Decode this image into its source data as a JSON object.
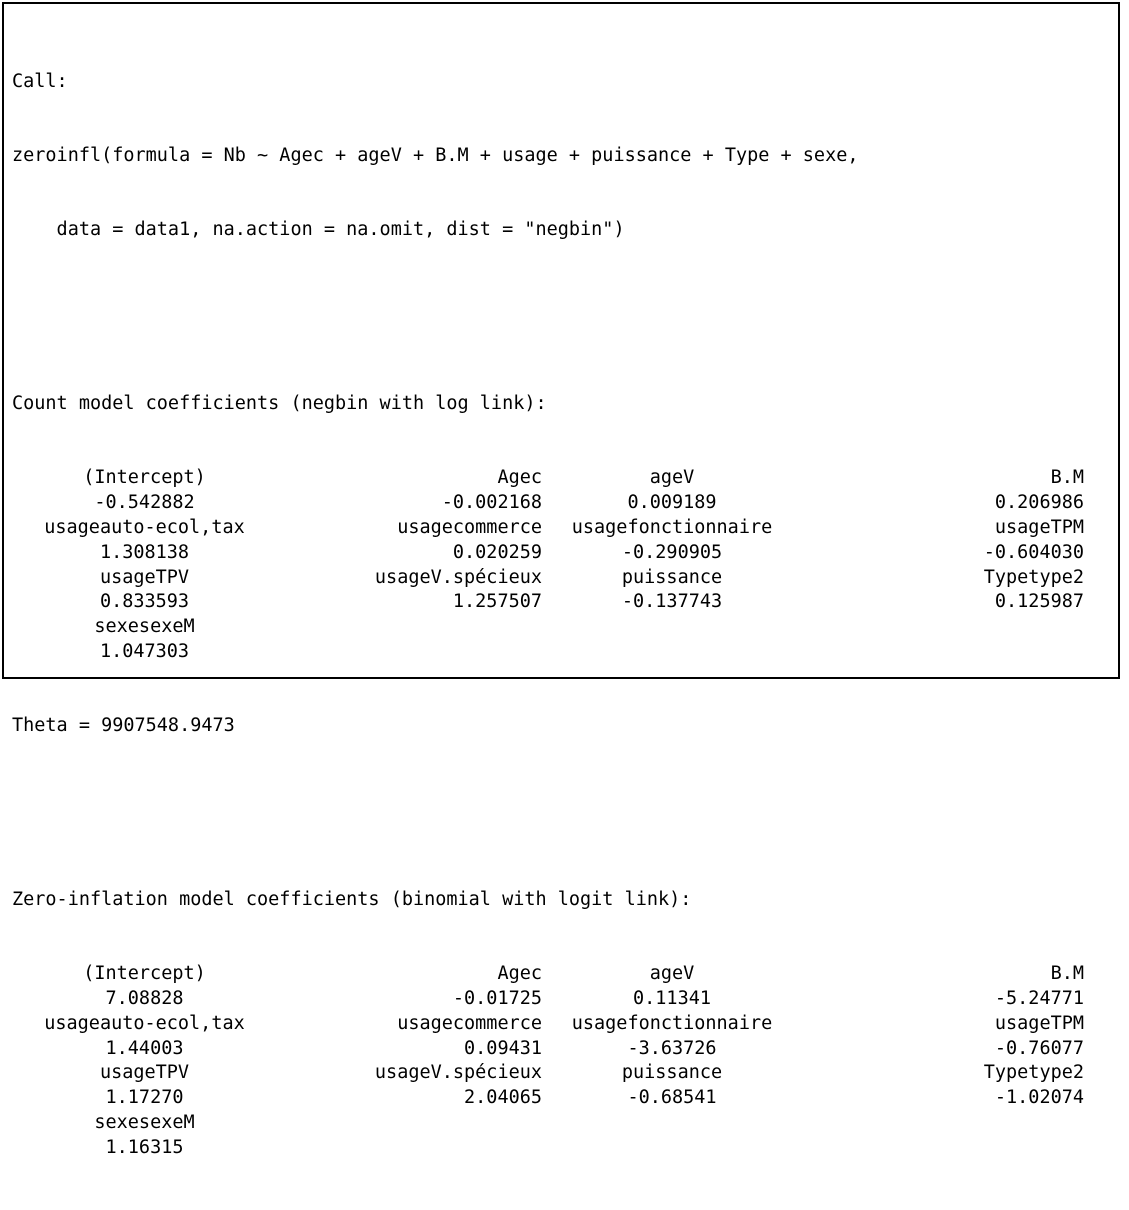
{
  "call": {
    "label": "Call:",
    "line1": "zeroinfl(formula = Nb ~ Agec + ageV + B.M + usage + puissance + Type + sexe,",
    "line2": "    data = data1, na.action = na.omit, dist = \"negbin\")"
  },
  "count": {
    "heading": "Count model coefficients (negbin with log link):",
    "rows": [
      [
        "(Intercept)",
        "Agec",
        "ageV",
        "B.M"
      ],
      [
        "-0.542882",
        "-0.002168",
        "0.009189",
        "0.206986"
      ],
      [
        "usageauto-ecol,tax",
        "usagecommerce",
        "usagefonctionnaire",
        "usageTPM"
      ],
      [
        "1.308138",
        "0.020259",
        "-0.290905",
        "-0.604030"
      ],
      [
        "usageTPV",
        "usageV.spécieux",
        "puissance",
        "Typetype2"
      ],
      [
        "0.833593",
        "1.257507",
        "-0.137743",
        "0.125987"
      ],
      [
        "sexesexeM",
        "",
        "",
        ""
      ],
      [
        "1.047303",
        "",
        "",
        ""
      ]
    ],
    "theta": "Theta = 9907548.9473"
  },
  "zero": {
    "heading": "Zero-inflation model coefficients (binomial with logit link):",
    "rows": [
      [
        "(Intercept)",
        "Agec",
        "ageV",
        "B.M"
      ],
      [
        "7.08828",
        "-0.01725",
        "0.11341",
        "-5.24771"
      ],
      [
        "usageauto-ecol,tax",
        "usagecommerce",
        "usagefonctionnaire",
        "usageTPM"
      ],
      [
        "1.44003",
        "0.09431",
        "-3.63726",
        "-0.76077"
      ],
      [
        "usageTPV",
        "usageV.spécieux",
        "puissance",
        "Typetype2"
      ],
      [
        "1.17270",
        "2.04065",
        "-0.68541",
        "-1.02074"
      ],
      [
        "sexesexeM",
        "",
        "",
        ""
      ],
      [
        "1.16315",
        "",
        "",
        ""
      ]
    ]
  }
}
